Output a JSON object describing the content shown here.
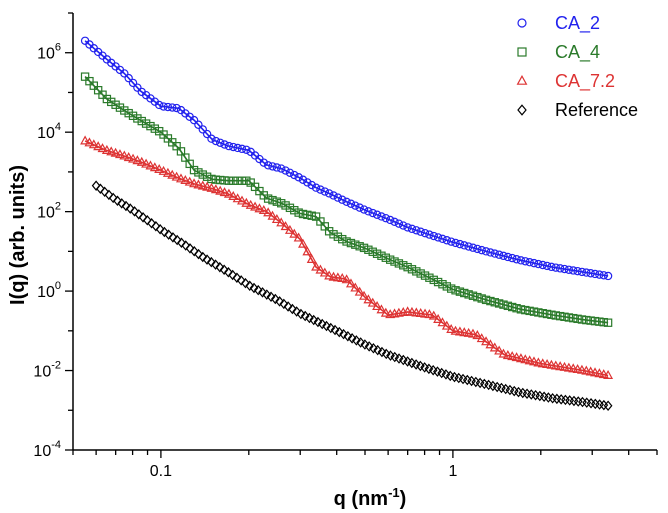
{
  "chart_data": {
    "type": "scatter",
    "xlabel": "q (nm",
    "xlabel_sup": "-1",
    "xlabel_end": ")",
    "ylabel": "I(q) (arb. units)",
    "x_scale": "log",
    "y_scale": "log",
    "xlim": [
      0.05,
      5
    ],
    "ylim": [
      0.0001,
      10000000
    ],
    "x_ticks": [
      {
        "value": 0.1,
        "label": "0.1"
      },
      {
        "value": 1,
        "label": "1"
      }
    ],
    "y_ticks": [
      {
        "value": 0.0001,
        "base": "10",
        "exp": "-4"
      },
      {
        "value": 0.01,
        "base": "10",
        "exp": "-2"
      },
      {
        "value": 1,
        "base": "10",
        "exp": "0"
      },
      {
        "value": 100,
        "base": "10",
        "exp": "2"
      },
      {
        "value": 10000,
        "base": "10",
        "exp": "4"
      },
      {
        "value": 1000000,
        "base": "10",
        "exp": "6"
      }
    ],
    "grid": false,
    "legend_position": "top-right",
    "series": [
      {
        "name": "CA_2",
        "marker": "circle",
        "color": "#2222ee",
        "fit_line": true,
        "points": [
          [
            0.055,
            2000000
          ],
          [
            0.065,
            700000
          ],
          [
            0.075,
            300000
          ],
          [
            0.085,
            110000
          ],
          [
            0.1,
            45000
          ],
          [
            0.115,
            40000
          ],
          [
            0.13,
            20000
          ],
          [
            0.15,
            6500
          ],
          [
            0.17,
            4500
          ],
          [
            0.2,
            3500
          ],
          [
            0.23,
            1500
          ],
          [
            0.26,
            1200
          ],
          [
            0.3,
            700
          ],
          [
            0.34,
            400
          ],
          [
            0.38,
            280
          ],
          [
            0.43,
            180
          ],
          [
            0.5,
            110
          ],
          [
            0.6,
            65
          ],
          [
            0.7,
            40
          ],
          [
            0.85,
            25
          ],
          [
            1,
            17
          ],
          [
            1.3,
            10
          ],
          [
            1.7,
            6
          ],
          [
            2.2,
            4
          ],
          [
            2.8,
            3
          ],
          [
            3.4,
            2.4
          ]
        ]
      },
      {
        "name": "CA_4",
        "marker": "square",
        "color": "#2a7a2a",
        "fit_line": true,
        "points": [
          [
            0.055,
            250000
          ],
          [
            0.065,
            70000
          ],
          [
            0.075,
            35000
          ],
          [
            0.085,
            20000
          ],
          [
            0.1,
            10000
          ],
          [
            0.115,
            4000
          ],
          [
            0.13,
            1100
          ],
          [
            0.15,
            650
          ],
          [
            0.17,
            600
          ],
          [
            0.2,
            600
          ],
          [
            0.23,
            220
          ],
          [
            0.26,
            160
          ],
          [
            0.3,
            90
          ],
          [
            0.34,
            75
          ],
          [
            0.38,
            30
          ],
          [
            0.43,
            18
          ],
          [
            0.5,
            12
          ],
          [
            0.6,
            6.5
          ],
          [
            0.7,
            4
          ],
          [
            0.85,
            2
          ],
          [
            1,
            1.1
          ],
          [
            1.3,
            0.6
          ],
          [
            1.7,
            0.35
          ],
          [
            2.2,
            0.25
          ],
          [
            2.8,
            0.19
          ],
          [
            3.4,
            0.16
          ]
        ]
      },
      {
        "name": "CA_7.2",
        "marker": "triangle",
        "color": "#dd3333",
        "fit_line": true,
        "points": [
          [
            0.055,
            6000
          ],
          [
            0.065,
            3500
          ],
          [
            0.075,
            2500
          ],
          [
            0.085,
            1800
          ],
          [
            0.1,
            1100
          ],
          [
            0.115,
            700
          ],
          [
            0.13,
            500
          ],
          [
            0.15,
            380
          ],
          [
            0.17,
            280
          ],
          [
            0.2,
            150
          ],
          [
            0.23,
            100
          ],
          [
            0.26,
            50
          ],
          [
            0.3,
            20
          ],
          [
            0.34,
            4
          ],
          [
            0.38,
            2.3
          ],
          [
            0.43,
            2
          ],
          [
            0.5,
            0.7
          ],
          [
            0.6,
            0.25
          ],
          [
            0.7,
            0.3
          ],
          [
            0.85,
            0.25
          ],
          [
            1,
            0.1
          ],
          [
            1.2,
            0.08
          ],
          [
            1.5,
            0.025
          ],
          [
            2,
            0.015
          ],
          [
            2.8,
            0.01
          ],
          [
            3.4,
            0.0075
          ]
        ]
      },
      {
        "name": "Reference",
        "marker": "diamond",
        "color": "#000000",
        "fit_line": false,
        "points": [
          [
            0.06,
            450
          ],
          [
            0.07,
            200
          ],
          [
            0.08,
            110
          ],
          [
            0.09,
            60
          ],
          [
            0.1,
            35
          ],
          [
            0.12,
            15
          ],
          [
            0.14,
            7
          ],
          [
            0.17,
            3
          ],
          [
            0.2,
            1.4
          ],
          [
            0.25,
            0.6
          ],
          [
            0.3,
            0.27
          ],
          [
            0.4,
            0.1
          ],
          [
            0.5,
            0.045
          ],
          [
            0.6,
            0.025
          ],
          [
            0.8,
            0.012
          ],
          [
            1,
            0.007
          ],
          [
            1.3,
            0.0045
          ],
          [
            1.7,
            0.0028
          ],
          [
            2.2,
            0.002
          ],
          [
            2.8,
            0.0016
          ],
          [
            3.4,
            0.0013
          ]
        ]
      }
    ]
  }
}
